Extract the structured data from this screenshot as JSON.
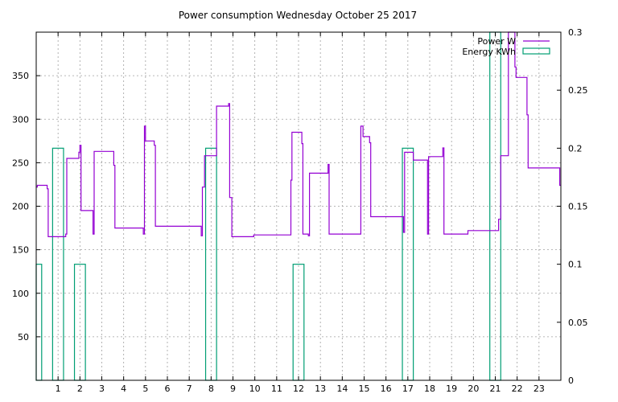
{
  "chart_data": {
    "type": "line",
    "title": "Power consumption Wednesday October 25 2017",
    "xlabel": "",
    "ylabel": "",
    "y2label": "",
    "xlim": [
      0,
      24
    ],
    "ylim": [
      0,
      400
    ],
    "y2lim": [
      0,
      0.3
    ],
    "grid": true,
    "legend_position": "top-right",
    "x_ticks": [
      "1",
      "2",
      "3",
      "4",
      "5",
      "6",
      "7",
      "8",
      "9",
      "10",
      "11",
      "12",
      "13",
      "14",
      "15",
      "16",
      "17",
      "18",
      "19",
      "20",
      "21",
      "22",
      "23"
    ],
    "y_ticks": [
      "50",
      "100",
      "150",
      "200",
      "250",
      "300",
      "350"
    ],
    "y2_ticks": [
      "0",
      "0.05",
      "0.1",
      "0.15",
      "0.2",
      "0.25",
      "0.3"
    ],
    "series": [
      {
        "name": "Power W",
        "axis": "left",
        "style": "steps",
        "color": "#9400d3",
        "points": [
          [
            0.0,
            222
          ],
          [
            0.05,
            224
          ],
          [
            0.5,
            220
          ],
          [
            0.55,
            165
          ],
          [
            1.3,
            165
          ],
          [
            1.35,
            168
          ],
          [
            1.4,
            255
          ],
          [
            1.95,
            262
          ],
          [
            2.0,
            270
          ],
          [
            2.05,
            195
          ],
          [
            2.55,
            195
          ],
          [
            2.6,
            168
          ],
          [
            2.65,
            263
          ],
          [
            3.5,
            263
          ],
          [
            3.55,
            247
          ],
          [
            3.6,
            175
          ],
          [
            4.85,
            175
          ],
          [
            4.9,
            168
          ],
          [
            4.95,
            292
          ],
          [
            5.0,
            275
          ],
          [
            5.4,
            270
          ],
          [
            5.45,
            177
          ],
          [
            7.5,
            177
          ],
          [
            7.55,
            166
          ],
          [
            7.6,
            222
          ],
          [
            7.7,
            258
          ],
          [
            8.25,
            315
          ],
          [
            8.8,
            318
          ],
          [
            8.85,
            210
          ],
          [
            8.95,
            165
          ],
          [
            9.9,
            165
          ],
          [
            9.95,
            167
          ],
          [
            11.6,
            167
          ],
          [
            11.65,
            230
          ],
          [
            11.7,
            285
          ],
          [
            12.15,
            272
          ],
          [
            12.2,
            168
          ],
          [
            12.45,
            166
          ],
          [
            12.5,
            238
          ],
          [
            13.3,
            238
          ],
          [
            13.35,
            248
          ],
          [
            13.4,
            168
          ],
          [
            14.8,
            168
          ],
          [
            14.85,
            292
          ],
          [
            14.95,
            280
          ],
          [
            15.25,
            273
          ],
          [
            15.3,
            188
          ],
          [
            16.75,
            188
          ],
          [
            16.8,
            170
          ],
          [
            16.85,
            262
          ],
          [
            17.2,
            262
          ],
          [
            17.25,
            253
          ],
          [
            17.85,
            253
          ],
          [
            17.9,
            168
          ],
          [
            17.95,
            257
          ],
          [
            18.55,
            257
          ],
          [
            18.6,
            267
          ],
          [
            18.65,
            168
          ],
          [
            19.7,
            168
          ],
          [
            19.75,
            172
          ],
          [
            21.1,
            172
          ],
          [
            21.15,
            185
          ],
          [
            21.25,
            258
          ],
          [
            21.5,
            258
          ],
          [
            21.6,
            400
          ],
          [
            21.9,
            360
          ],
          [
            21.95,
            348
          ],
          [
            22.4,
            348
          ],
          [
            22.45,
            305
          ],
          [
            22.5,
            244
          ],
          [
            23.9,
            244
          ],
          [
            23.95,
            224
          ],
          [
            24.0,
            224
          ]
        ]
      },
      {
        "name": "Energy KWh",
        "axis": "right",
        "style": "boxes",
        "color": "#009e73",
        "boxes": [
          {
            "x0": 0.0,
            "x1": 0.25,
            "value": 0.1
          },
          {
            "x0": 0.75,
            "x1": 1.25,
            "value": 0.2
          },
          {
            "x0": 1.75,
            "x1": 2.25,
            "value": 0.1
          },
          {
            "x0": 7.75,
            "x1": 8.25,
            "value": 0.2
          },
          {
            "x0": 11.75,
            "x1": 12.25,
            "value": 0.1
          },
          {
            "x0": 16.75,
            "x1": 17.25,
            "value": 0.2
          },
          {
            "x0": 20.75,
            "x1": 21.25,
            "value": 0.3
          }
        ]
      }
    ]
  }
}
